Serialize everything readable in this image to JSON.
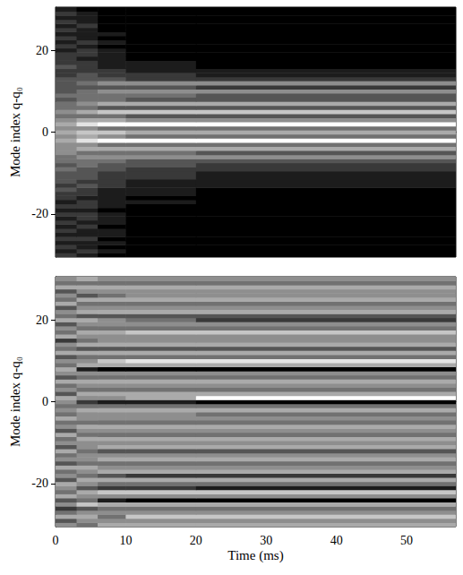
{
  "chart_data": [
    {
      "type": "heatmap",
      "y_label": "Mode index q-q₀",
      "x_bins": [
        0,
        3,
        6,
        10,
        20,
        57
      ],
      "y": [
        -30,
        -29,
        -28,
        -27,
        -26,
        -25,
        -24,
        -23,
        -22,
        -21,
        -20,
        -19,
        -18,
        -17,
        -16,
        -15,
        -14,
        -13,
        -12,
        -11,
        -10,
        -9,
        -8,
        -7,
        -6,
        -5,
        -4,
        -3,
        -2,
        -1,
        0,
        1,
        2,
        3,
        4,
        5,
        6,
        7,
        8,
        9,
        10,
        11,
        12,
        13,
        14,
        15,
        16,
        17,
        18,
        19,
        20,
        21,
        22,
        23,
        24,
        25,
        26,
        27,
        28,
        29,
        30
      ],
      "cells": [
        [
          2,
          1,
          0,
          0,
          0
        ],
        [
          1,
          2,
          1,
          0,
          0
        ],
        [
          2,
          1,
          0,
          0,
          0
        ],
        [
          1,
          1,
          1,
          0,
          0
        ],
        [
          2,
          2,
          0,
          0,
          0
        ],
        [
          1,
          1,
          1,
          0,
          0
        ],
        [
          2,
          1,
          1,
          0,
          0
        ],
        [
          1,
          2,
          0,
          0,
          0
        ],
        [
          2,
          1,
          1,
          0,
          0
        ],
        [
          1,
          2,
          1,
          0,
          0
        ],
        [
          2,
          2,
          1,
          0,
          0
        ],
        [
          1,
          1,
          0,
          0,
          0
        ],
        [
          2,
          2,
          1,
          0,
          0
        ],
        [
          1,
          2,
          1,
          1,
          0
        ],
        [
          2,
          1,
          1,
          0,
          0
        ],
        [
          2,
          2,
          1,
          1,
          0
        ],
        [
          3,
          2,
          1,
          1,
          0
        ],
        [
          2,
          3,
          2,
          1,
          1
        ],
        [
          3,
          2,
          2,
          1,
          1
        ],
        [
          3,
          3,
          2,
          2,
          1
        ],
        [
          3,
          3,
          2,
          2,
          1
        ],
        [
          4,
          3,
          3,
          2,
          2
        ],
        [
          3,
          4,
          3,
          3,
          2
        ],
        [
          4,
          4,
          4,
          3,
          3
        ],
        [
          4,
          5,
          5,
          5,
          5
        ],
        [
          5,
          4,
          4,
          4,
          3
        ],
        [
          5,
          6,
          6,
          6,
          6
        ],
        [
          5,
          5,
          4,
          4,
          4
        ],
        [
          6,
          8,
          9,
          9,
          9
        ],
        [
          5,
          6,
          5,
          4,
          4
        ],
        [
          6,
          7,
          7,
          6,
          6
        ],
        [
          5,
          5,
          4,
          4,
          4
        ],
        [
          6,
          8,
          9,
          9,
          9
        ],
        [
          5,
          6,
          6,
          5,
          5
        ],
        [
          4,
          4,
          4,
          3,
          3
        ],
        [
          5,
          6,
          7,
          7,
          7
        ],
        [
          4,
          4,
          3,
          3,
          3
        ],
        [
          4,
          5,
          6,
          6,
          6
        ],
        [
          3,
          4,
          4,
          3,
          3
        ],
        [
          4,
          4,
          4,
          4,
          3
        ],
        [
          3,
          4,
          5,
          5,
          5
        ],
        [
          3,
          3,
          3,
          3,
          2
        ],
        [
          3,
          4,
          5,
          5,
          5
        ],
        [
          3,
          3,
          3,
          2,
          2
        ],
        [
          2,
          3,
          2,
          2,
          1
        ],
        [
          2,
          2,
          2,
          1,
          1
        ],
        [
          3,
          2,
          1,
          1,
          0
        ],
        [
          2,
          2,
          1,
          1,
          0
        ],
        [
          2,
          1,
          1,
          0,
          0
        ],
        [
          2,
          2,
          1,
          0,
          0
        ],
        [
          1,
          2,
          1,
          0,
          0
        ],
        [
          2,
          1,
          0,
          0,
          0
        ],
        [
          1,
          2,
          1,
          0,
          0
        ],
        [
          2,
          1,
          0,
          0,
          0
        ],
        [
          1,
          1,
          1,
          0,
          0
        ],
        [
          2,
          1,
          0,
          0,
          0
        ],
        [
          1,
          2,
          0,
          0,
          0
        ],
        [
          2,
          1,
          0,
          0,
          0
        ],
        [
          1,
          1,
          0,
          0,
          0
        ],
        [
          2,
          1,
          0,
          0,
          0
        ],
        [
          1,
          0,
          0,
          0,
          0
        ]
      ],
      "zlim": [
        0,
        9
      ],
      "xlim": [
        0,
        57
      ],
      "ylim": [
        -30.5,
        30.5
      ],
      "xticks": [
        0,
        10,
        20,
        30,
        40,
        50
      ],
      "yticks": [
        -20,
        0,
        20
      ],
      "tick_labels": "y"
    },
    {
      "type": "heatmap",
      "y_label": "Mode index q-q₀",
      "x_label": "Time (ms)",
      "x_bins": [
        0,
        3,
        6,
        10,
        20,
        57
      ],
      "y": [
        -30,
        -29,
        -28,
        -27,
        -26,
        -25,
        -24,
        -23,
        -22,
        -21,
        -20,
        -19,
        -18,
        -17,
        -16,
        -15,
        -14,
        -13,
        -12,
        -11,
        -10,
        -9,
        -8,
        -7,
        -6,
        -5,
        -4,
        -3,
        -2,
        -1,
        0,
        1,
        2,
        3,
        4,
        5,
        6,
        7,
        8,
        9,
        10,
        11,
        12,
        13,
        14,
        15,
        16,
        17,
        18,
        19,
        20,
        21,
        22,
        23,
        24,
        25,
        26,
        27,
        28,
        29,
        30
      ],
      "cells": [
        [
          5,
          4,
          6,
          6,
          6
        ],
        [
          3,
          5,
          5,
          5,
          5
        ],
        [
          6,
          6,
          4,
          7,
          7
        ],
        [
          4,
          5,
          5,
          5,
          5
        ],
        [
          2,
          3,
          4,
          4,
          4
        ],
        [
          5,
          7,
          6,
          6,
          6
        ],
        [
          3,
          4,
          1,
          0,
          0
        ],
        [
          6,
          5,
          5,
          5,
          5
        ],
        [
          4,
          6,
          7,
          7,
          7
        ],
        [
          5,
          3,
          2,
          2,
          1
        ],
        [
          6,
          5,
          4,
          4,
          4
        ],
        [
          3,
          6,
          6,
          6,
          6
        ],
        [
          5,
          4,
          3,
          2,
          2
        ],
        [
          4,
          5,
          6,
          6,
          6
        ],
        [
          6,
          6,
          5,
          5,
          5
        ],
        [
          3,
          4,
          4,
          4,
          4
        ],
        [
          5,
          5,
          6,
          6,
          6
        ],
        [
          4,
          5,
          5,
          5,
          5
        ],
        [
          6,
          4,
          3,
          3,
          3
        ],
        [
          3,
          5,
          6,
          6,
          6
        ],
        [
          5,
          5,
          5,
          5,
          5
        ],
        [
          4,
          6,
          6,
          6,
          6
        ],
        [
          6,
          4,
          4,
          4,
          4
        ],
        [
          3,
          5,
          5,
          5,
          5
        ],
        [
          5,
          6,
          6,
          6,
          6
        ],
        [
          4,
          4,
          4,
          4,
          4
        ],
        [
          6,
          5,
          5,
          5,
          5
        ],
        [
          4,
          5,
          5,
          5,
          4
        ],
        [
          5,
          6,
          6,
          6,
          6
        ],
        [
          4,
          4,
          4,
          4,
          4
        ],
        [
          5,
          2,
          1,
          1,
          0
        ],
        [
          6,
          5,
          5,
          6,
          9
        ],
        [
          3,
          6,
          6,
          6,
          6
        ],
        [
          5,
          4,
          4,
          4,
          4
        ],
        [
          4,
          5,
          5,
          5,
          5
        ],
        [
          6,
          6,
          6,
          6,
          6
        ],
        [
          3,
          4,
          4,
          4,
          4
        ],
        [
          5,
          5,
          5,
          5,
          5
        ],
        [
          6,
          1,
          0,
          0,
          0
        ],
        [
          4,
          6,
          6,
          6,
          6
        ],
        [
          5,
          5,
          7,
          8,
          8
        ],
        [
          3,
          4,
          4,
          4,
          4
        ],
        [
          6,
          6,
          6,
          6,
          6
        ],
        [
          4,
          3,
          3,
          3,
          3
        ],
        [
          5,
          6,
          6,
          6,
          6
        ],
        [
          2,
          4,
          5,
          5,
          5
        ],
        [
          6,
          5,
          5,
          5,
          5
        ],
        [
          4,
          6,
          6,
          7,
          7
        ],
        [
          5,
          4,
          4,
          4,
          4
        ],
        [
          3,
          5,
          5,
          5,
          5
        ],
        [
          6,
          6,
          5,
          4,
          2
        ],
        [
          4,
          3,
          3,
          3,
          3
        ],
        [
          5,
          6,
          6,
          6,
          6
        ],
        [
          3,
          5,
          5,
          5,
          5
        ],
        [
          6,
          4,
          4,
          4,
          4
        ],
        [
          4,
          6,
          6,
          6,
          6
        ],
        [
          5,
          3,
          4,
          5,
          5
        ],
        [
          3,
          5,
          5,
          5,
          5
        ],
        [
          6,
          6,
          6,
          6,
          6
        ],
        [
          4,
          4,
          4,
          4,
          4
        ],
        [
          5,
          6,
          5,
          5,
          5
        ]
      ],
      "zlim": [
        0,
        9
      ],
      "xlim": [
        0,
        57
      ],
      "ylim": [
        -30.5,
        30.5
      ],
      "xticks": [
        0,
        10,
        20,
        30,
        40,
        50
      ],
      "yticks": [
        -20,
        0,
        20
      ]
    }
  ]
}
